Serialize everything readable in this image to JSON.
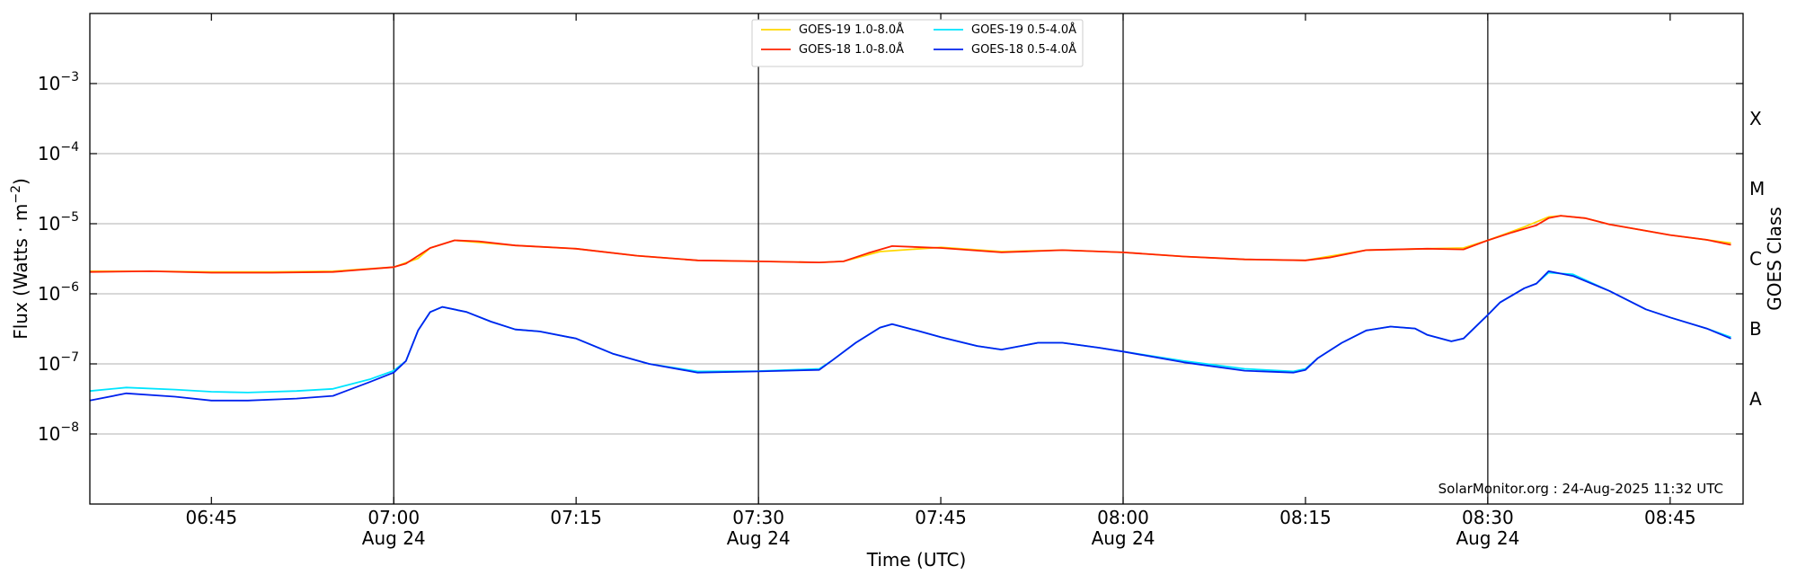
{
  "chart_data": {
    "type": "line",
    "xlabel": "Time (UTC)",
    "ylabel_base": "Flux (Watts · m",
    "ylabel_sup": "−2",
    "ylabel_end": ")",
    "y2label": "GOES Class",
    "y_scale": "log",
    "ylim": [
      1e-09,
      0.01
    ],
    "xlim": [
      "06:35",
      "08:51"
    ],
    "grid": "horizontal",
    "legend_position": "top-center",
    "credit": "SolarMonitor.org : 24-Aug-2025 11:32 UTC",
    "y_ticks": [
      {
        "value": 1e-08,
        "base": "10",
        "exp": "−8"
      },
      {
        "value": 1e-07,
        "base": "10",
        "exp": "−7"
      },
      {
        "value": 1e-06,
        "base": "10",
        "exp": "−6"
      },
      {
        "value": 1e-05,
        "base": "10",
        "exp": "−5"
      },
      {
        "value": 0.0001,
        "base": "10",
        "exp": "−4"
      },
      {
        "value": 0.001,
        "base": "10",
        "exp": "−3"
      }
    ],
    "class_labels": [
      {
        "label": "A",
        "value": 3.16e-08
      },
      {
        "label": "B",
        "value": 3.16e-07
      },
      {
        "label": "C",
        "value": 3.16e-06
      },
      {
        "label": "M",
        "value": 3.16e-05
      },
      {
        "label": "X",
        "value": 0.000316
      }
    ],
    "x_ticks": [
      {
        "time": "06:45",
        "label": "06:45",
        "sub": ""
      },
      {
        "time": "07:00",
        "label": "07:00",
        "sub": "Aug 24"
      },
      {
        "time": "07:15",
        "label": "07:15",
        "sub": ""
      },
      {
        "time": "07:30",
        "label": "07:30",
        "sub": "Aug 24"
      },
      {
        "time": "07:45",
        "label": "07:45",
        "sub": ""
      },
      {
        "time": "08:00",
        "label": "08:00",
        "sub": "Aug 24"
      },
      {
        "time": "08:15",
        "label": "08:15",
        "sub": ""
      },
      {
        "time": "08:30",
        "label": "08:30",
        "sub": "Aug 24"
      },
      {
        "time": "08:45",
        "label": "08:45",
        "sub": ""
      }
    ],
    "vertical_lines": [
      "07:00",
      "07:30",
      "08:00",
      "08:30"
    ],
    "legend": [
      {
        "name": "GOES-19 1.0-8.0Å",
        "color": "#ffd700",
        "col": 0,
        "row": 0
      },
      {
        "name": "GOES-18 1.0-8.0Å",
        "color": "#ff2200",
        "col": 0,
        "row": 1
      },
      {
        "name": "GOES-19 0.5-4.0Å",
        "color": "#00e5ff",
        "col": 1,
        "row": 0
      },
      {
        "name": "GOES-18 0.5-4.0Å",
        "color": "#0022ee",
        "col": 1,
        "row": 1
      }
    ],
    "series": [
      {
        "name": "GOES-19 1.0-8.0Å",
        "color": "#ffd700",
        "x": [
          "06:35",
          "06:40",
          "06:45",
          "06:50",
          "06:55",
          "07:00",
          "07:02",
          "07:03",
          "07:05",
          "07:10",
          "07:15",
          "07:20",
          "07:25",
          "07:30",
          "07:35",
          "07:37",
          "07:40",
          "07:45",
          "07:50",
          "07:55",
          "08:00",
          "08:05",
          "08:10",
          "08:15",
          "08:20",
          "08:25",
          "08:28",
          "08:30",
          "08:33",
          "08:35",
          "08:36",
          "08:38",
          "08:40",
          "08:45",
          "08:50"
        ],
        "y": [
          2.1e-06,
          2.1e-06,
          2.05e-06,
          2.05e-06,
          2.1e-06,
          2.4e-06,
          3.2e-06,
          4.5e-06,
          5.8e-06,
          4.9e-06,
          4.4e-06,
          3.5e-06,
          3e-06,
          2.9e-06,
          2.8e-06,
          2.9e-06,
          4e-06,
          4.6e-06,
          4e-06,
          4.2e-06,
          3.9e-06,
          3.4e-06,
          3.1e-06,
          3e-06,
          4.2e-06,
          4.4e-06,
          4.5e-06,
          5.8e-06,
          9e-06,
          1.25e-05,
          1.3e-05,
          1.2e-05,
          9.8e-06,
          6.9e-06,
          5.3e-06
        ]
      },
      {
        "name": "GOES-18 1.0-8.0Å",
        "color": "#ff2200",
        "x": [
          "06:35",
          "06:40",
          "06:45",
          "06:50",
          "06:55",
          "07:00",
          "07:01",
          "07:03",
          "07:05",
          "07:07",
          "07:10",
          "07:15",
          "07:20",
          "07:25",
          "07:30",
          "07:35",
          "07:37",
          "07:39",
          "07:41",
          "07:45",
          "07:50",
          "07:55",
          "08:00",
          "08:05",
          "08:10",
          "08:15",
          "08:17",
          "08:20",
          "08:25",
          "08:28",
          "08:30",
          "08:32",
          "08:34",
          "08:35",
          "08:36",
          "08:38",
          "08:40",
          "08:45",
          "08:48",
          "08:50"
        ],
        "y": [
          2.05e-06,
          2.1e-06,
          2e-06,
          2e-06,
          2.05e-06,
          2.4e-06,
          2.7e-06,
          4.5e-06,
          5.8e-06,
          5.6e-06,
          4.9e-06,
          4.4e-06,
          3.5e-06,
          3e-06,
          2.9e-06,
          2.8e-06,
          2.9e-06,
          3.8e-06,
          4.8e-06,
          4.5e-06,
          3.9e-06,
          4.2e-06,
          3.9e-06,
          3.4e-06,
          3.1e-06,
          3e-06,
          3.3e-06,
          4.2e-06,
          4.4e-06,
          4.3e-06,
          5.8e-06,
          7.5e-06,
          9.5e-06,
          1.2e-05,
          1.3e-05,
          1.2e-05,
          9.8e-06,
          6.9e-06,
          5.9e-06,
          5e-06
        ]
      },
      {
        "name": "GOES-19 0.5-4.0Å",
        "color": "#00e5ff",
        "x": [
          "06:35",
          "06:38",
          "06:42",
          "06:45",
          "06:48",
          "06:52",
          "06:55",
          "06:58",
          "07:00",
          "07:01",
          "07:02",
          "07:03",
          "07:04",
          "07:06",
          "07:08",
          "07:10",
          "07:12",
          "07:15",
          "07:18",
          "07:21",
          "07:25",
          "07:30",
          "07:35",
          "07:36",
          "07:38",
          "07:40",
          "07:41",
          "07:43",
          "07:45",
          "07:48",
          "07:50",
          "07:53",
          "07:55",
          "07:58",
          "08:00",
          "08:05",
          "08:10",
          "08:14",
          "08:15",
          "08:16",
          "08:18",
          "08:20",
          "08:22",
          "08:24",
          "08:25",
          "08:27",
          "08:28",
          "08:30",
          "08:31",
          "08:33",
          "08:34",
          "08:35",
          "08:37",
          "08:40",
          "08:43",
          "08:45",
          "08:48",
          "08:50"
        ],
        "y": [
          4.1e-08,
          4.6e-08,
          4.3e-08,
          4e-08,
          3.9e-08,
          4.1e-08,
          4.4e-08,
          6e-08,
          8e-08,
          1.1e-07,
          3e-07,
          5.5e-07,
          6.5e-07,
          5.5e-07,
          4e-07,
          3.1e-07,
          2.9e-07,
          2.3e-07,
          1.4e-07,
          1e-07,
          7.8e-08,
          7.9e-08,
          8.5e-08,
          1.1e-07,
          2e-07,
          3.3e-07,
          3.7e-07,
          3e-07,
          2.4e-07,
          1.8e-07,
          1.6e-07,
          2e-07,
          2e-07,
          1.7e-07,
          1.5e-07,
          1.1e-07,
          8.5e-08,
          7.8e-08,
          8.5e-08,
          1.2e-07,
          2e-07,
          3e-07,
          3.4e-07,
          3.2e-07,
          2.6e-07,
          2.1e-07,
          2.3e-07,
          5e-07,
          7.5e-07,
          1.2e-06,
          1.4e-06,
          2e-06,
          1.9e-06,
          1.1e-06,
          6e-07,
          4.6e-07,
          3.2e-07,
          2.4e-07
        ]
      },
      {
        "name": "GOES-18 0.5-4.0Å",
        "color": "#0022ee",
        "x": [
          "06:35",
          "06:38",
          "06:42",
          "06:45",
          "06:48",
          "06:52",
          "06:55",
          "06:58",
          "07:00",
          "07:01",
          "07:02",
          "07:03",
          "07:04",
          "07:06",
          "07:08",
          "07:10",
          "07:12",
          "07:15",
          "07:18",
          "07:21",
          "07:25",
          "07:30",
          "07:35",
          "07:36",
          "07:38",
          "07:40",
          "07:41",
          "07:43",
          "07:45",
          "07:48",
          "07:50",
          "07:53",
          "07:55",
          "07:58",
          "08:00",
          "08:05",
          "08:10",
          "08:14",
          "08:15",
          "08:16",
          "08:18",
          "08:20",
          "08:22",
          "08:24",
          "08:25",
          "08:27",
          "08:28",
          "08:30",
          "08:31",
          "08:33",
          "08:34",
          "08:35",
          "08:37",
          "08:40",
          "08:43",
          "08:45",
          "08:48",
          "08:50"
        ],
        "y": [
          3e-08,
          3.8e-08,
          3.4e-08,
          3e-08,
          3e-08,
          3.2e-08,
          3.5e-08,
          5.5e-08,
          7.5e-08,
          1.1e-07,
          3e-07,
          5.5e-07,
          6.5e-07,
          5.5e-07,
          4e-07,
          3.1e-07,
          2.9e-07,
          2.3e-07,
          1.4e-07,
          1e-07,
          7.5e-08,
          7.8e-08,
          8.2e-08,
          1.1e-07,
          2e-07,
          3.3e-07,
          3.7e-07,
          3e-07,
          2.4e-07,
          1.8e-07,
          1.6e-07,
          2e-07,
          2e-07,
          1.7e-07,
          1.5e-07,
          1.05e-07,
          8e-08,
          7.5e-08,
          8.2e-08,
          1.2e-07,
          2e-07,
          3e-07,
          3.4e-07,
          3.2e-07,
          2.6e-07,
          2.1e-07,
          2.3e-07,
          5e-07,
          7.5e-07,
          1.2e-06,
          1.4e-06,
          2.1e-06,
          1.8e-06,
          1.1e-06,
          6e-07,
          4.6e-07,
          3.2e-07,
          2.3e-07
        ]
      }
    ]
  }
}
